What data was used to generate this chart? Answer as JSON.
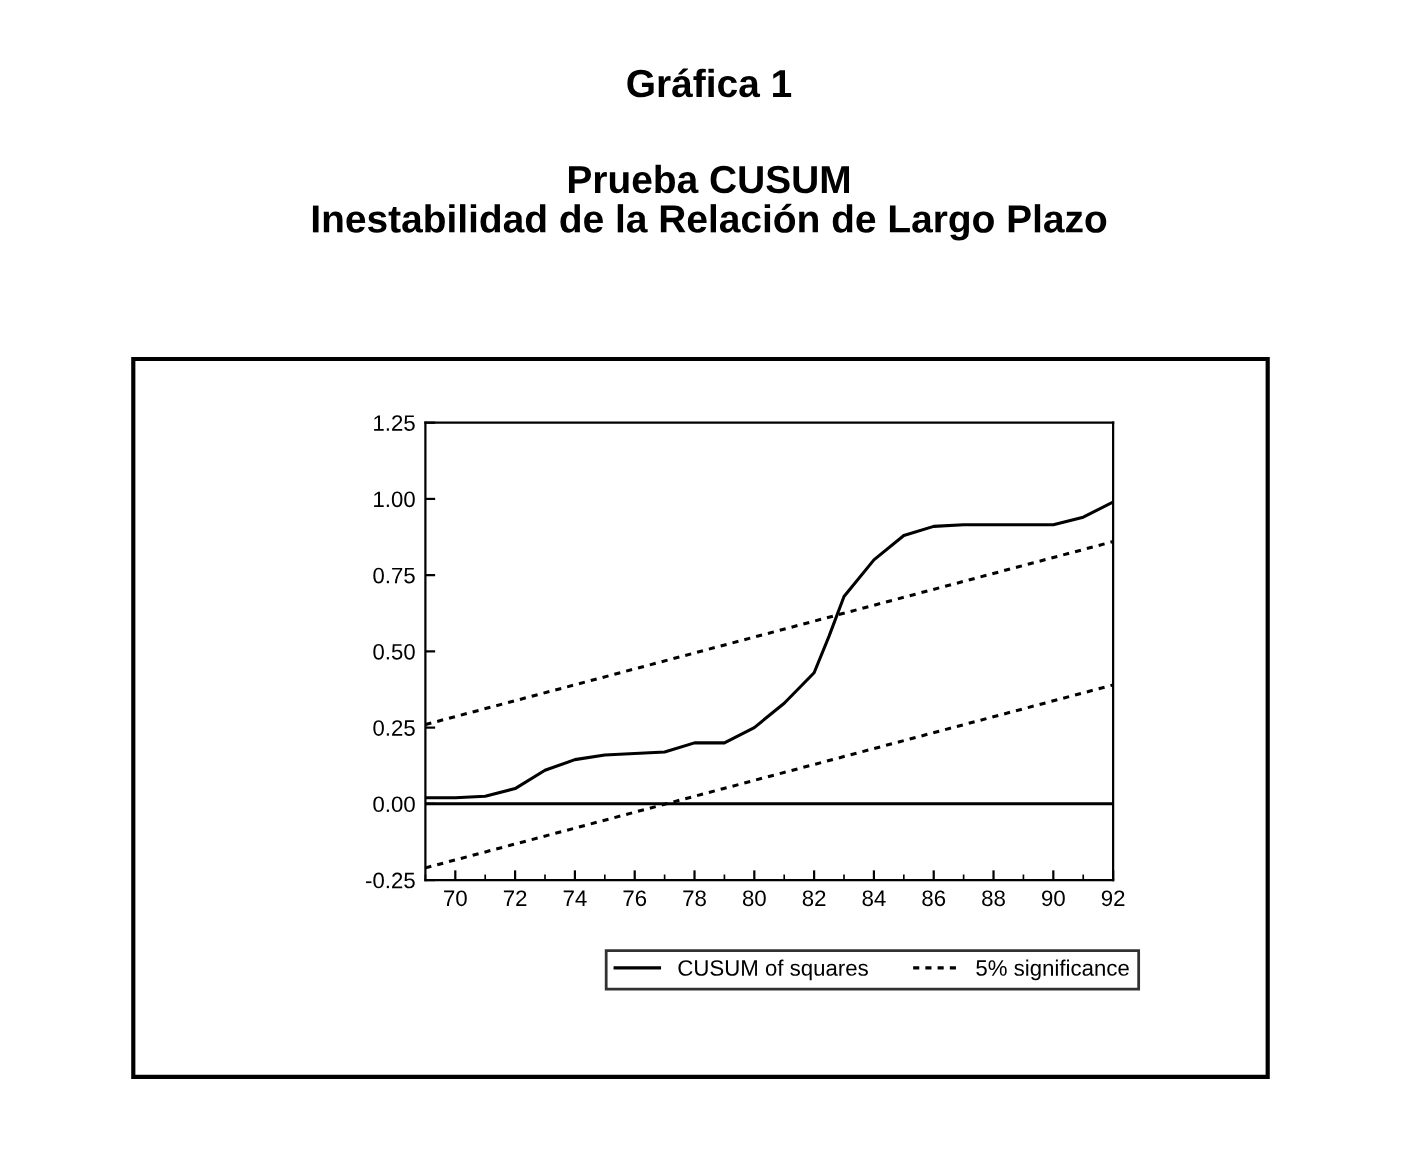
{
  "chart_data": {
    "type": "line",
    "title": "Gráfica 1",
    "subtitle": "Prueba CUSUM\nInestabilidad de la Relación de Largo Plazo",
    "xlim": [
      69,
      92
    ],
    "xticks": [
      70,
      72,
      74,
      76,
      78,
      80,
      82,
      84,
      86,
      88,
      90,
      92
    ],
    "ylim": [
      -0.25,
      1.25
    ],
    "yticks": [
      {
        "value": -0.25,
        "label": "-0.25"
      },
      {
        "value": 0,
        "label": "0.00"
      },
      {
        "value": 0.25,
        "label": "0.25"
      },
      {
        "value": 0.5,
        "label": "0.50"
      },
      {
        "value": 0.75,
        "label": "0.75"
      },
      {
        "value": 1.0,
        "label": "1.00"
      },
      {
        "value": 1.25,
        "label": "1.25"
      }
    ],
    "grid": false,
    "legend": "bottom",
    "series": [
      {
        "name": "CUSUM of squares",
        "color": "#000000",
        "line_style": "solid",
        "x": [
          69,
          70,
          71,
          72,
          73,
          74,
          75,
          76,
          77,
          78,
          79,
          80,
          81,
          82,
          82.5,
          83,
          84,
          85,
          86,
          87,
          88,
          89,
          90,
          91,
          92
        ],
        "values": [
          0.02,
          0.02,
          0.025,
          0.05,
          0.11,
          0.145,
          0.16,
          0.165,
          0.17,
          0.2,
          0.2,
          0.25,
          0.33,
          0.43,
          0.55,
          0.68,
          0.8,
          0.88,
          0.91,
          0.915,
          0.915,
          0.915,
          0.915,
          0.94,
          0.99
        ]
      },
      {
        "name": "5% significance",
        "color": "#000000",
        "line_style": "dotted",
        "x": [
          69,
          92
        ],
        "values": [
          0.26,
          0.86
        ]
      },
      {
        "color": "#000000",
        "line_style": "dotted",
        "x": [
          69,
          92
        ],
        "values": [
          -0.21,
          0.39
        ]
      }
    ],
    "ref_lines": [
      {
        "axis": "y",
        "value": 0,
        "color": "#000000",
        "line_style": "solid"
      }
    ]
  }
}
